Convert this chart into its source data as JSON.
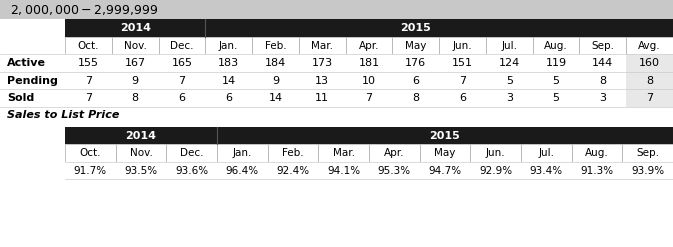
{
  "title": "$2,000,000 - $2,999,999",
  "title_bg": "#c8c8c8",
  "header_bg": "#1a1a1a",
  "header_text_color": "#ffffff",
  "avg_bg": "#e8e8e8",
  "row_labels": [
    "Active",
    "Pending",
    "Sold"
  ],
  "months_2014": [
    "Oct.",
    "Nov.",
    "Dec."
  ],
  "months_2015": [
    "Jan.",
    "Feb.",
    "Mar.",
    "Apr.",
    "May",
    "Jun.",
    "Jul.",
    "Aug.",
    "Sep."
  ],
  "avg_label": "Avg.",
  "active_values": [
    "155",
    "167",
    "165",
    "183",
    "184",
    "173",
    "181",
    "176",
    "151",
    "124",
    "119",
    "144",
    "160"
  ],
  "pending_values": [
    "7",
    "9",
    "7",
    "14",
    "9",
    "13",
    "10",
    "6",
    "7",
    "5",
    "5",
    "8",
    "8"
  ],
  "sold_values": [
    "7",
    "8",
    "6",
    "6",
    "14",
    "11",
    "7",
    "8",
    "6",
    "3",
    "5",
    "3",
    "7"
  ],
  "sales_to_list_label": "Sales to List Price",
  "sales_months_2014": [
    "Oct.",
    "Nov.",
    "Dec."
  ],
  "sales_months_2015": [
    "Jan.",
    "Feb.",
    "Mar.",
    "Apr.",
    "May",
    "Jun.",
    "Jul.",
    "Aug.",
    "Sep."
  ],
  "sales_values": [
    "91.7%",
    "93.5%",
    "93.6%",
    "96.4%",
    "92.4%",
    "94.1%",
    "95.3%",
    "94.7%",
    "92.9%",
    "93.4%",
    "91.3%",
    "93.9%"
  ],
  "fig_width": 6.73,
  "fig_height": 2.47,
  "dpi": 100
}
